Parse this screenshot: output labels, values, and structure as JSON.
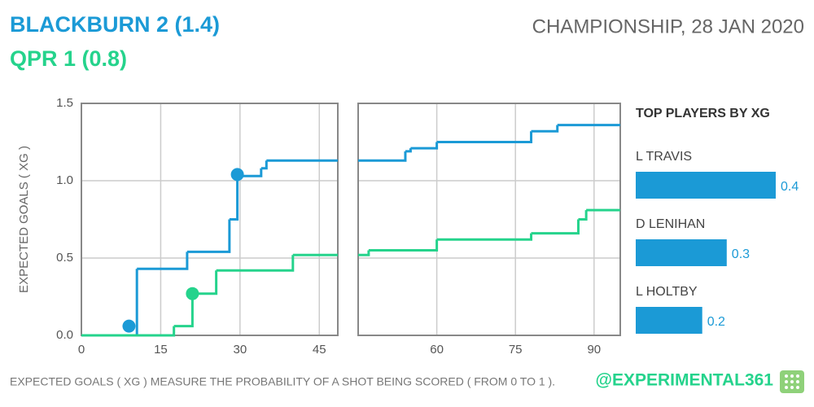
{
  "header": {
    "title": "BLACKBURN 2 (1.4)",
    "subtitle": "QPR 1 (0.8)",
    "competition": "CHAMPIONSHIP, 28 JAN 2020"
  },
  "footer": {
    "note": "EXPECTED GOALS ( XG ) MEASURE THE PROBABILITY OF A SHOT BEING SCORED ( FROM 0 TO 1 ).",
    "handle": "@EXPERIMENTAL361"
  },
  "chart_data": [
    {
      "type": "line",
      "step": true,
      "ylabel": "EXPECTED GOALS ( XG )",
      "xlim": [
        0,
        48.5
      ],
      "ylim": [
        0,
        1.5
      ],
      "xticks": [
        0,
        15,
        30,
        45
      ],
      "yticks": [
        {
          "value": 0,
          "label": "0.0"
        },
        0.5,
        {
          "value": 1,
          "label": "1.0"
        },
        1.5
      ],
      "show_ytick_labels": true,
      "grid": true,
      "series": [
        {
          "color": "#1b9ad6",
          "x": [
            0,
            10.5,
            20,
            28,
            29.5,
            34,
            35
          ],
          "values": [
            0,
            0.43,
            0.54,
            0.75,
            1.03,
            1.08,
            1.13
          ],
          "goals": {
            "x": [
              9,
              29.5
            ],
            "values": [
              0.06,
              1.04
            ]
          }
        },
        {
          "color": "#25d38c",
          "x": [
            0,
            17.5,
            21,
            25.5,
            40
          ],
          "values": [
            0,
            0.06,
            0.27,
            0.42,
            0.52
          ],
          "goals": {
            "x": [
              21
            ],
            "values": [
              0.27
            ]
          }
        }
      ]
    },
    {
      "type": "line",
      "step": true,
      "xlim": [
        45,
        95
      ],
      "ylim": [
        0,
        1.5
      ],
      "xticks": [
        60,
        75,
        90
      ],
      "yticks": [
        0,
        0.5,
        1,
        1.5
      ],
      "show_ytick_labels": false,
      "grid": true,
      "series": [
        {
          "color": "#1b9ad6",
          "x": [
            45,
            54,
            55,
            60,
            78,
            83
          ],
          "values": [
            1.13,
            1.19,
            1.21,
            1.25,
            1.32,
            1.36
          ]
        },
        {
          "color": "#25d38c",
          "x": [
            45,
            47,
            60,
            78,
            87,
            88.5
          ],
          "values": [
            0.52,
            0.55,
            0.62,
            0.66,
            0.75,
            0.81
          ]
        }
      ]
    },
    {
      "type": "hbar",
      "title": "TOP PLAYERS BY XG",
      "categories": [
        "L TRAVIS",
        "D LENIHAN",
        "L HOLTBY"
      ],
      "values": [
        0.4,
        0.26,
        0.19
      ],
      "value_labels": [
        "0.4",
        "0.3",
        "0.2"
      ],
      "xlim": [
        0,
        0.4
      ],
      "color": "#1b9ad6"
    }
  ]
}
